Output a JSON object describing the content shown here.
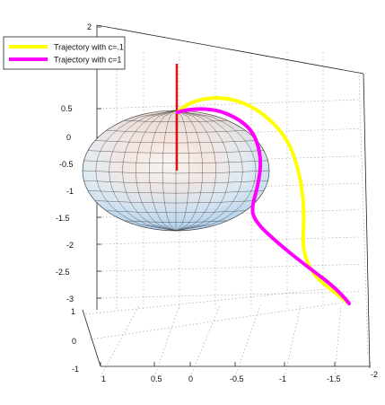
{
  "chart_data": {
    "type": "line",
    "title": "",
    "xlabel": "",
    "ylabel": "",
    "zlabel": "",
    "x_ticks": [
      "1",
      "0.5",
      "0",
      "-0.5",
      "-1",
      "-1.5",
      "-2"
    ],
    "y_ticks": [
      "1",
      "0",
      "-1"
    ],
    "z_ticks": [
      "2",
      "0.5",
      "0",
      "-0.5",
      "-1",
      "-1.5",
      "-2",
      "-2.5",
      "-3"
    ],
    "legend_position": "top-left",
    "grid": true,
    "surface": "ellipsoid",
    "vertical_line": {
      "color": "#dd1111"
    },
    "series": [
      {
        "name": "Trajectory with c=.1",
        "color": "#ffff00",
        "points": [
          [
            0.05,
            0.1,
            0.6
          ],
          [
            -0.8,
            -0.3,
            0.25
          ],
          [
            -0.95,
            -0.3,
            -0.6
          ],
          [
            -0.95,
            -0.35,
            -1.8
          ],
          [
            -1.2,
            -0.5,
            -2.6
          ],
          [
            -1.55,
            -0.9,
            -3.0
          ]
        ]
      },
      {
        "name": "Trajectory with c=1",
        "color": "#ff00ff",
        "points": [
          [
            0.05,
            0.1,
            0.6
          ],
          [
            -0.45,
            0.1,
            0.35
          ],
          [
            -0.6,
            -0.1,
            -0.4
          ],
          [
            -0.6,
            -0.1,
            -1.5
          ],
          [
            -1.1,
            -0.4,
            -2.5
          ],
          [
            -1.55,
            -0.9,
            -3.0
          ]
        ]
      }
    ]
  }
}
